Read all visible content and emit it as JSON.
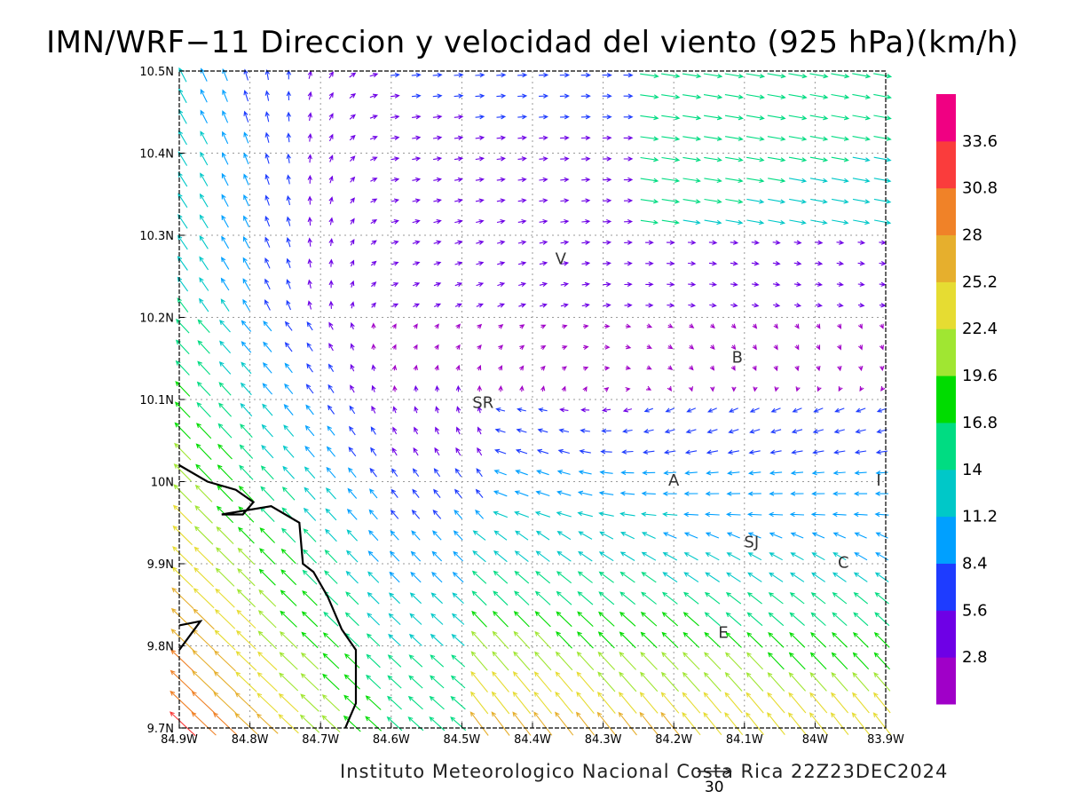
{
  "title": "IMN/WRF−11 Direccion y velocidad del viento (925 hPa)(km/h)",
  "footer": "Instituto Meteorologico Nacional Costa Rica 22Z23DEC2024",
  "map": {
    "lon_range": [
      -84.9,
      -83.9
    ],
    "lat_range": [
      9.7,
      10.5
    ],
    "x_ticks": [
      {
        "value": -84.9,
        "label": "84.9W"
      },
      {
        "value": -84.8,
        "label": "84.8W"
      },
      {
        "value": -84.7,
        "label": "84.7W"
      },
      {
        "value": -84.6,
        "label": "84.6W"
      },
      {
        "value": -84.5,
        "label": "84.5W"
      },
      {
        "value": -84.4,
        "label": "84.4W"
      },
      {
        "value": -84.3,
        "label": "84.3W"
      },
      {
        "value": -84.2,
        "label": "84.2W"
      },
      {
        "value": -84.1,
        "label": "84.1W"
      },
      {
        "value": -84.0,
        "label": "84W"
      },
      {
        "value": -83.9,
        "label": "83.9W"
      }
    ],
    "y_ticks": [
      {
        "value": 9.7,
        "label": "9.7N"
      },
      {
        "value": 9.8,
        "label": "9.8N"
      },
      {
        "value": 9.9,
        "label": "9.9N"
      },
      {
        "value": 10.0,
        "label": "10N"
      },
      {
        "value": 10.1,
        "label": "10.1N"
      },
      {
        "value": 10.2,
        "label": "10.2N"
      },
      {
        "value": 10.3,
        "label": "10.3N"
      },
      {
        "value": 10.4,
        "label": "10.4N"
      },
      {
        "value": 10.5,
        "label": "10.5N"
      }
    ],
    "grid": true,
    "place_labels": [
      {
        "text": "V",
        "lon": -84.36,
        "lat": 10.265
      },
      {
        "text": "B",
        "lon": -84.11,
        "lat": 10.145
      },
      {
        "text": "SR",
        "lon": -84.47,
        "lat": 10.09
      },
      {
        "text": "A",
        "lon": -84.2,
        "lat": 9.995
      },
      {
        "text": "I",
        "lon": -83.91,
        "lat": 9.995
      },
      {
        "text": "SJ",
        "lon": -84.09,
        "lat": 9.92
      },
      {
        "text": "C",
        "lon": -83.96,
        "lat": 9.895
      },
      {
        "text": "E",
        "lon": -84.13,
        "lat": 9.81
      }
    ],
    "coastline": [
      [
        [
          -84.9,
          10.02
        ],
        [
          -84.86,
          10.0
        ],
        [
          -84.82,
          9.99
        ],
        [
          -84.795,
          9.975
        ],
        [
          -84.81,
          9.96
        ],
        [
          -84.84,
          9.96
        ],
        [
          -84.77,
          9.97
        ],
        [
          -84.73,
          9.95
        ],
        [
          -84.725,
          9.9
        ],
        [
          -84.71,
          9.89
        ],
        [
          -84.69,
          9.86
        ],
        [
          -84.67,
          9.82
        ],
        [
          -84.65,
          9.795
        ],
        [
          -84.65,
          9.73
        ],
        [
          -84.66,
          9.71
        ],
        [
          -84.665,
          9.7
        ]
      ],
      [
        [
          -84.9,
          9.825
        ],
        [
          -84.87,
          9.83
        ],
        [
          -84.9,
          9.795
        ]
      ]
    ]
  },
  "wind_legend": {
    "units": "km/h",
    "levels": [
      2.8,
      5.6,
      8.4,
      11.2,
      14,
      16.8,
      19.6,
      22.4,
      25.2,
      28,
      30.8,
      33.6
    ],
    "tick_labels": [
      "2.8",
      "5.6",
      "8.4",
      "11.2",
      "14",
      "16.8",
      "19.6",
      "22.4",
      "25.2",
      "28",
      "30.8",
      "33.6"
    ],
    "colors": [
      "#a000c8",
      "#6e00e6",
      "#1e3cff",
      "#00a0ff",
      "#00c8c8",
      "#00dc82",
      "#00dc00",
      "#a0e632",
      "#e6dc32",
      "#e6af2d",
      "#f08228",
      "#fa3c3c",
      "#f00082"
    ]
  },
  "reference_vector": {
    "label": "30",
    "speed": 30
  }
}
